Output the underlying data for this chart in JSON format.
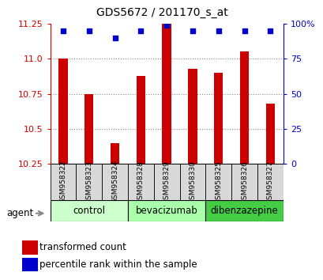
{
  "title": "GDS5672 / 201170_s_at",
  "samples": [
    "GSM958322",
    "GSM958323",
    "GSM958324",
    "GSM958328",
    "GSM958329",
    "GSM958330",
    "GSM958325",
    "GSM958326",
    "GSM958327"
  ],
  "transformed_count": [
    11.0,
    10.75,
    10.4,
    10.88,
    11.25,
    10.93,
    10.9,
    11.05,
    10.68
  ],
  "percentile_rank": [
    95,
    95,
    90,
    95,
    99,
    95,
    95,
    95,
    95
  ],
  "y_min": 10.25,
  "y_max": 11.25,
  "y_ticks": [
    10.25,
    10.5,
    10.75,
    11.0,
    11.25
  ],
  "y2_ticks": [
    0,
    25,
    50,
    75,
    100
  ],
  "groups": [
    {
      "label": "control",
      "start": 0,
      "end": 3,
      "color": "#ccffcc"
    },
    {
      "label": "bevacizumab",
      "start": 3,
      "end": 6,
      "color": "#aaffaa"
    },
    {
      "label": "dibenzazepine",
      "start": 6,
      "end": 9,
      "color": "#44cc44"
    }
  ],
  "bar_color": "#cc0000",
  "dot_color": "#0000cc",
  "bar_width": 0.35,
  "left_tick_color": "#cc0000",
  "right_tick_color": "#0000cc",
  "grid_color": "#888888",
  "agent_label": "agent",
  "legend_tc": "transformed count",
  "legend_pr": "percentile rank within the sample",
  "title_fontsize": 10,
  "tick_fontsize": 8,
  "label_fontsize": 8.5,
  "sample_fontsize": 6.5
}
